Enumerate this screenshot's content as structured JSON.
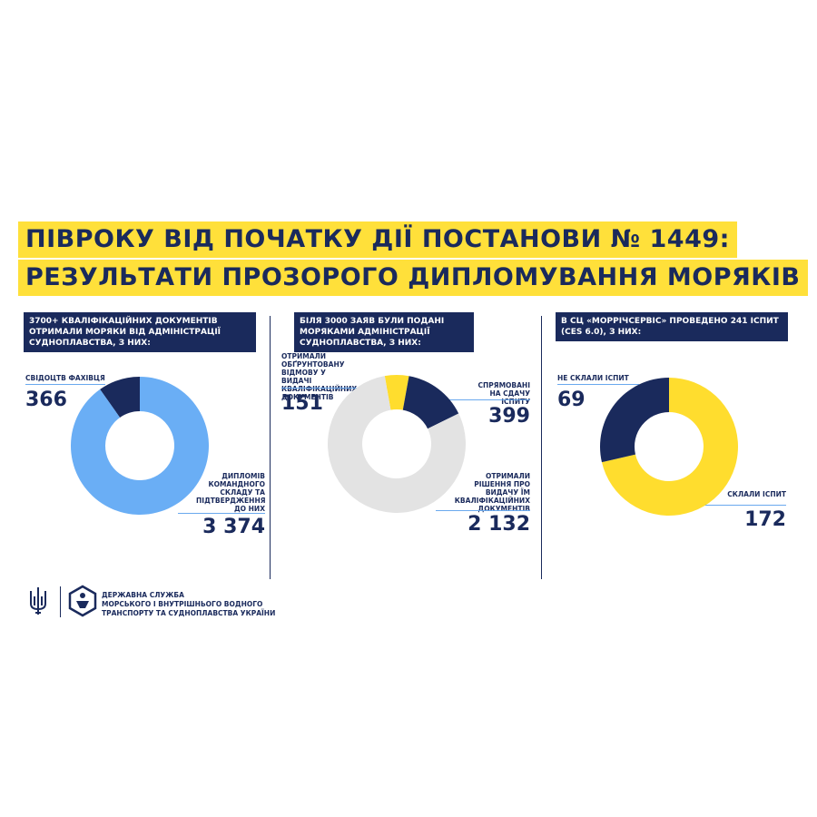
{
  "title": {
    "line1": "ПІВРОКУ ВІД ПОЧАТКУ ДІЇ ПОСТАНОВИ № 1449:",
    "line2": "РЕЗУЛЬТАТИ ПРОЗОРОГО ДИПЛОМУВАННЯ МОРЯКІВ"
  },
  "colors": {
    "navy": "#1a2a5c",
    "yellow": "#ffdd2e",
    "light_blue": "#6aaef5",
    "light_gray": "#e3e3e3"
  },
  "chart_data": [
    {
      "type": "pie",
      "title": "3700+ КВАЛІФІКАЦІЙНИХ ДОКУМЕНТІВ ОТРИМАЛИ МОРЯКИ ВІД АДМІНІСТРАЦІЇ СУДНОПЛАВСТВА, З НИХ:",
      "slices": [
        {
          "label": "СВІДОЦТВ ФАХІВЦЯ",
          "value": 366,
          "display": "366",
          "color": "#1a2a5c"
        },
        {
          "label": "ДИПЛОМІВ КОМАНДНОГО СКЛАДУ ТА ПІДТВЕРДЖЕННЯ ДО НИХ",
          "value": 3374,
          "display": "3 374",
          "color": "#6aaef5"
        }
      ]
    },
    {
      "type": "pie",
      "title": "БІЛЯ 3000 ЗАЯВ БУЛИ ПОДАНІ МОРЯКАМИ АДМІНІСТРАЦІЇ СУДНОПЛАВСТВА, З НИХ:",
      "slices": [
        {
          "label": "СПРЯМОВАНІ НА СДАЧУ ІСПИТУ",
          "value": 399,
          "display": "399",
          "color": "#1a2a5c"
        },
        {
          "label": "ОТРИМАЛИ РІШЕННЯ ПРО ВИДАЧУ ЇМ КВАЛІФІКАЦІЙНИХ ДОКУМЕНТІВ",
          "value": 2132,
          "display": "2 132",
          "color": "#e3e3e3"
        },
        {
          "label": "ОТРИМАЛИ ОБҐРУНТОВАНУ ВІДМОВУ У ВИДАЧІ КВАЛІФІКАЦІЙНИХ ДОКУМЕНТІВ",
          "value": 151,
          "display": "151",
          "color": "#ffdd2e"
        }
      ]
    },
    {
      "type": "pie",
      "title": "В СЦ «МОРРІЧСЕРВІС» ПРОВЕДЕНО 241 ІСПИТ (CES 6.0), З НИХ:",
      "slices": [
        {
          "label": "СКЛАЛИ ІСПИТ",
          "value": 172,
          "display": "172",
          "color": "#ffdd2e"
        },
        {
          "label": "НЕ СКЛАЛИ ІСПИТ",
          "value": 69,
          "display": "69",
          "color": "#1a2a5c"
        }
      ]
    }
  ],
  "footer": {
    "org_line1": "ДЕРЖАВНА СЛУЖБА",
    "org_line2": "МОРСЬКОГО І ВНУТРІШНЬОГО ВОДНОГО",
    "org_line3": "ТРАНСПОРТУ ТА СУДНОПЛАВСТВА УКРАЇНИ",
    "coat_of_arms_icon": "trident-icon",
    "logo_icon": "agency-logo-icon"
  }
}
